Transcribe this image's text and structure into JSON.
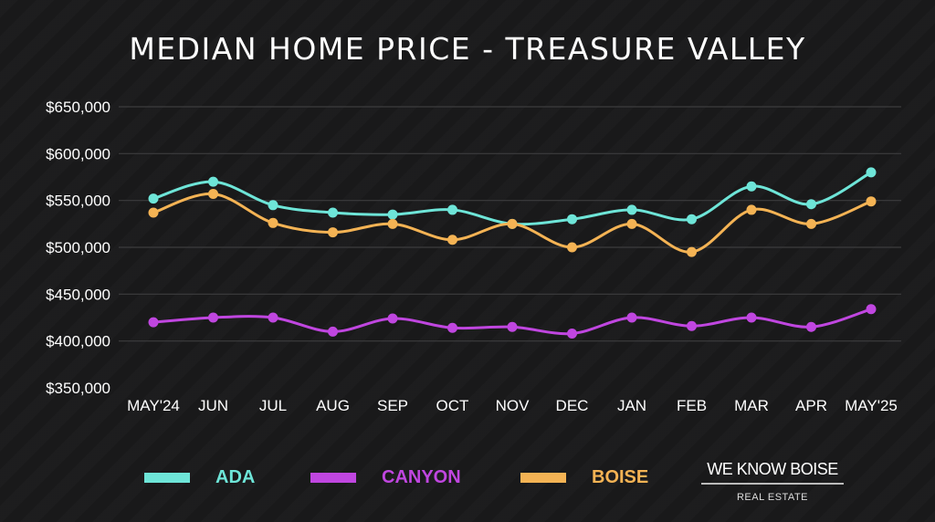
{
  "chart_data": {
    "type": "line",
    "title": "MEDIAN HOME PRICE - TREASURE VALLEY",
    "categories": [
      "MAY'24",
      "JUN",
      "JUL",
      "AUG",
      "SEP",
      "OCT",
      "NOV",
      "DEC",
      "JAN",
      "FEB",
      "MAR",
      "APR",
      "MAY'25"
    ],
    "ylim": [
      350000,
      650000
    ],
    "yticks": [
      350000,
      400000,
      450000,
      500000,
      550000,
      600000,
      650000
    ],
    "ytick_labels": [
      "$350,000",
      "$400,000",
      "$450,000",
      "$500,000",
      "$550,000",
      "$600,000",
      "$650,000"
    ],
    "grid": true,
    "legend_position": "bottom",
    "series": [
      {
        "name": "ADA",
        "color": "#6ee5d8",
        "values": [
          552000,
          570000,
          545000,
          537000,
          535000,
          540000,
          525000,
          530000,
          540000,
          530000,
          565000,
          546000,
          580000
        ]
      },
      {
        "name": "CANYON",
        "color": "#c046e0",
        "values": [
          420000,
          425000,
          425000,
          410000,
          424000,
          414000,
          415000,
          408000,
          425000,
          416000,
          425000,
          415000,
          434000
        ]
      },
      {
        "name": "BOISE",
        "color": "#f4b354",
        "values": [
          537000,
          557000,
          526000,
          516000,
          525000,
          508000,
          525000,
          500000,
          525000,
          495000,
          540000,
          525000,
          549000
        ]
      }
    ]
  },
  "logo": {
    "main": "WE KNOW BOISE",
    "sub": "REAL ESTATE"
  }
}
